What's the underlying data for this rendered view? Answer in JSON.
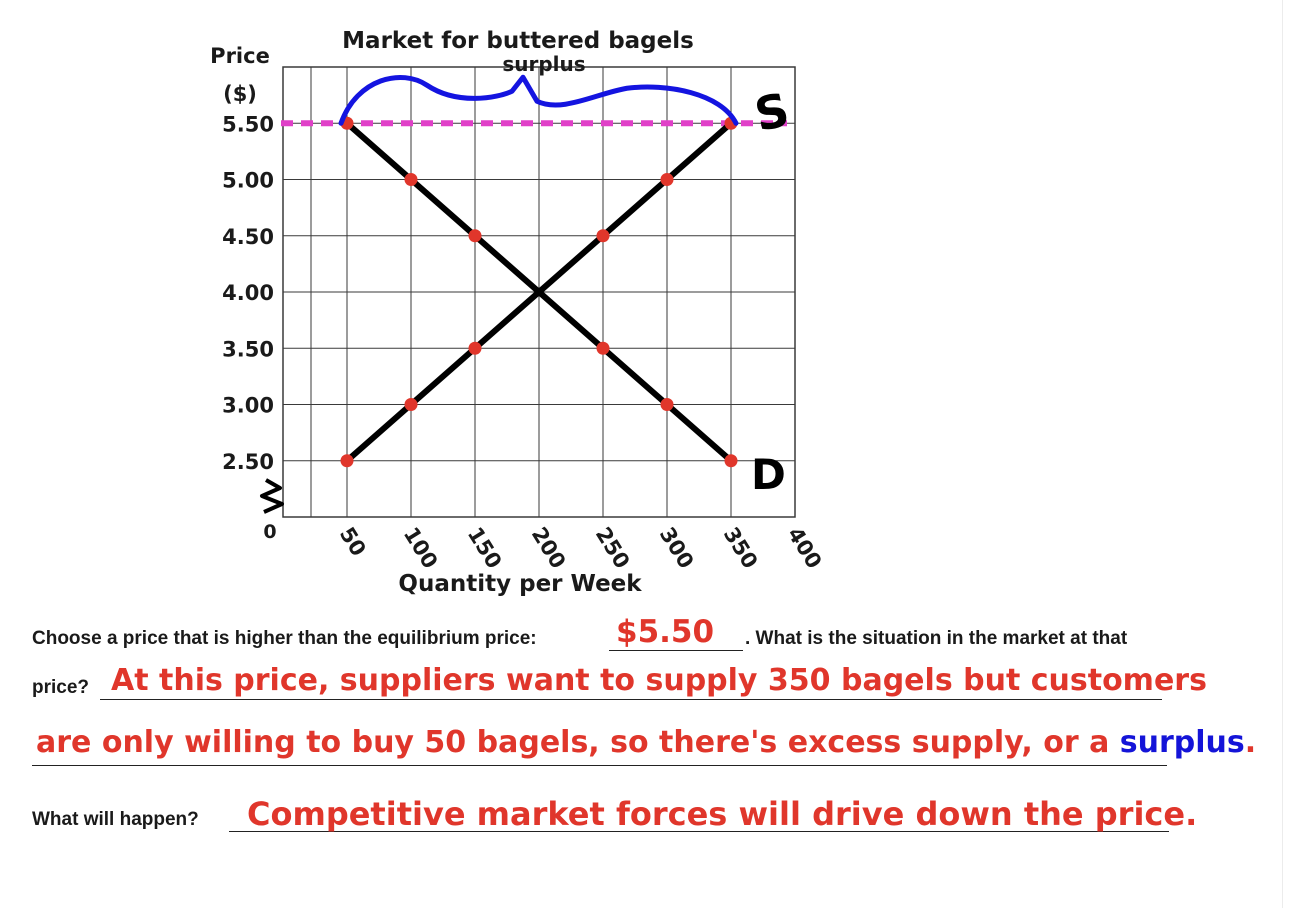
{
  "chart_data": {
    "type": "line",
    "title": "Market for buttered bagels",
    "ylabel": "Price ($)",
    "xlabel": "Quantity per Week",
    "x_ticks": [
      "50",
      "100",
      "150",
      "200",
      "250",
      "300",
      "350",
      "400"
    ],
    "y_ticks": [
      "5.50",
      "5.00",
      "4.50",
      "4.00",
      "3.50",
      "3.00",
      "2.50"
    ],
    "origin_label": "0",
    "xlim": [
      0,
      400
    ],
    "ylim": [
      2.0,
      6.0
    ],
    "grid": true,
    "series": [
      {
        "name": "S",
        "color": "#000000",
        "points": [
          [
            50,
            2.5
          ],
          [
            100,
            3.0
          ],
          [
            150,
            3.5
          ],
          [
            200,
            4.0
          ],
          [
            250,
            4.5
          ],
          [
            300,
            5.0
          ],
          [
            350,
            5.5
          ]
        ]
      },
      {
        "name": "D",
        "color": "#000000",
        "points": [
          [
            50,
            5.5
          ],
          [
            100,
            5.0
          ],
          [
            150,
            4.5
          ],
          [
            200,
            4.0
          ],
          [
            250,
            3.5
          ],
          [
            300,
            3.0
          ],
          [
            350,
            2.5
          ]
        ]
      }
    ],
    "point_color": "#e0362b",
    "price_line": {
      "y": 5.5,
      "color": "#e040c8"
    },
    "annotation": {
      "text": "surplus",
      "color": "#1414d8",
      "from_x": 50,
      "to_x": 350
    }
  },
  "worksheet": {
    "q1_prefix": "Choose a price that is higher than the equilibrium price:",
    "q1_answer": "$5.50",
    "q1_suffix": ". What is the situation in the market at that",
    "q2_prefix": "price?",
    "answer_line1": "At this price, suppliers want to supply 350 bagels but customers",
    "answer_line2": "are only willing to buy 50 bagels, so there's excess supply, or a",
    "answer_line2_word": "surplus",
    "answer_line2_end": ".",
    "q3_prefix": "What will happen?",
    "answer_line3": "Competitive market forces will drive down the price.",
    "colors": {
      "answer": "#e0362b",
      "highlight": "#1414d8"
    }
  }
}
